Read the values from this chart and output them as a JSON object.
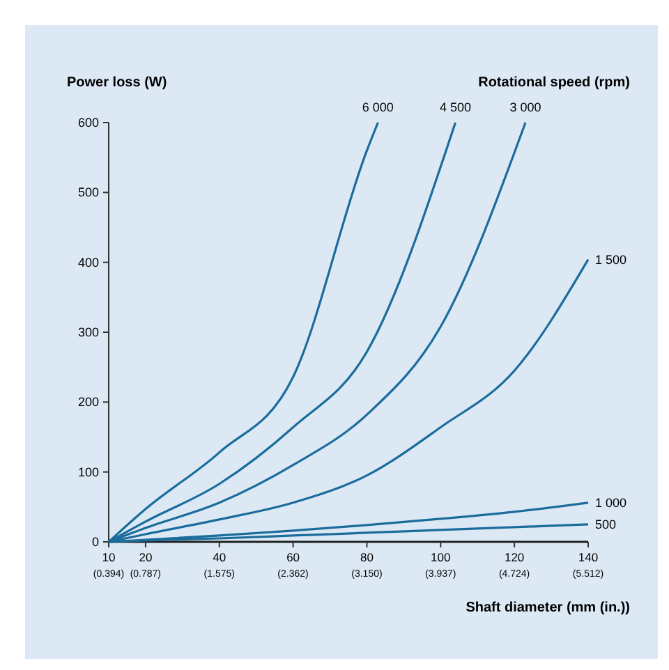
{
  "chart_data": {
    "type": "line",
    "ylabel": "Power loss (W)",
    "xlabel": "Shaft diameter (mm (in.))",
    "legend_title": "Rotational speed (rpm)",
    "xlim": [
      10,
      140
    ],
    "ylim": [
      0,
      600
    ],
    "xticks": [
      10,
      20,
      40,
      60,
      80,
      100,
      120,
      140
    ],
    "x2lim": [
      0.394,
      5.512
    ],
    "x2ticks": [
      {
        "value": 0.394,
        "label": "(0.394)"
      },
      {
        "value": 0.787,
        "label": "(0.787)"
      },
      {
        "value": 1.575,
        "label": "(1.575)"
      },
      {
        "value": 2.362,
        "label": "(2.362)"
      },
      {
        "value": 3.15,
        "label": "(3.150)"
      },
      {
        "value": 3.937,
        "label": "(3.937)"
      },
      {
        "value": 4.724,
        "label": "(4.724)"
      },
      {
        "value": 5.512,
        "label": "(5.512)"
      }
    ],
    "yticks": [
      0,
      100,
      200,
      300,
      400,
      500,
      600
    ],
    "legend": false,
    "grid": false,
    "series": [
      {
        "name": "6 000",
        "color": "#1b6c9c",
        "x": [
          10,
          20,
          40,
          60,
          80,
          83
        ],
        "values": [
          0,
          47,
          128,
          236,
          560,
          600
        ]
      },
      {
        "name": "4 500",
        "color": "#1b6c9c",
        "x": [
          10,
          20,
          40,
          60,
          80,
          104
        ],
        "values": [
          0,
          29,
          83,
          164,
          272,
          600
        ]
      },
      {
        "name": "3 000",
        "color": "#1b6c9c",
        "x": [
          10,
          20,
          40,
          60,
          80,
          100,
          123
        ],
        "values": [
          0,
          20,
          56,
          110,
          182,
          308,
          600
        ]
      },
      {
        "name": "1 500",
        "color": "#1b6c9c",
        "x": [
          10,
          20,
          40,
          60,
          80,
          100,
          120,
          140
        ],
        "values": [
          0,
          11,
          32,
          56,
          95,
          164,
          245,
          404
        ]
      },
      {
        "name": "1 000",
        "color": "#1b6c9c",
        "x": [
          10,
          20,
          40,
          60,
          80,
          100,
          120,
          140
        ],
        "values": [
          0,
          3,
          9,
          16,
          24,
          33,
          43,
          56
        ]
      },
      {
        "name": "500",
        "color": "#1b6c9c",
        "x": [
          10,
          20,
          40,
          60,
          80,
          100,
          120,
          140
        ],
        "values": [
          0,
          2,
          5,
          9,
          13,
          17,
          21,
          25
        ]
      }
    ]
  }
}
